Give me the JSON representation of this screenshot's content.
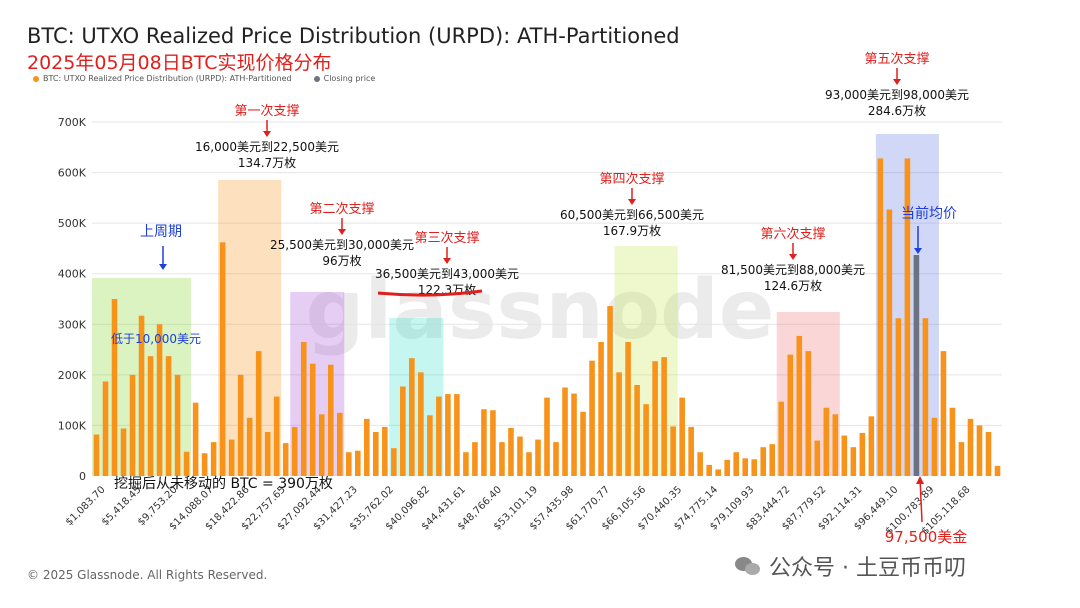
{
  "title": "BTC: UTXO Realized Price Distribution (URPD): ATH-Partitioned",
  "subtitle": "2025年05月08日BTC实现价格分布",
  "legend": {
    "series1": "BTC: UTXO Realized Price Distribution (URPD): ATH-Partitioned",
    "series2": "Closing price"
  },
  "colors": {
    "bar": "#f7931a",
    "bar_alt": "#f5a14a",
    "closing": "#6b7280",
    "grid": "#e5e5e5",
    "annotation_red": "#e0201c",
    "annotation_blue": "#1e3fd8"
  },
  "watermark": "glassnode",
  "copyright": "© 2025 Glassnode. All Rights Reserved.",
  "wechat_label": "公众号 · 土豆币币叨",
  "chart_data": {
    "type": "bar",
    "title": "BTC: UTXO Realized Price Distribution (URPD): ATH-Partitioned",
    "ylim": [
      0,
      700000
    ],
    "yticks": [
      0,
      100000,
      200000,
      300000,
      400000,
      500000,
      600000,
      700000
    ],
    "ytick_labels": [
      "0",
      "100K",
      "200K",
      "300K",
      "400K",
      "500K",
      "600K",
      "700K"
    ],
    "xtick_labels": [
      "$1,083.70",
      "$5,418.45",
      "$9,753.20",
      "$14,088.07",
      "$18,422.86",
      "$22,757.65",
      "$27,092.44",
      "$31,427.23",
      "$35,762.02",
      "$40,096.82",
      "$44,431.61",
      "$48,766.40",
      "$53,101.19",
      "$57,435.98",
      "$61,770.77",
      "$66,105.56",
      "$70,440.35",
      "$74,775.14",
      "$79,109.93",
      "$83,444.72",
      "$87,779.52",
      "$92,114.31",
      "$96,449.10",
      "$100,783.89",
      "$105,118.68"
    ],
    "values": [
      82000,
      187000,
      350000,
      94000,
      200000,
      317000,
      237000,
      300000,
      237000,
      200000,
      48000,
      145000,
      45000,
      67000,
      462000,
      72000,
      200000,
      115000,
      247000,
      87000,
      157000,
      65000,
      97000,
      265000,
      222000,
      122000,
      220000,
      125000,
      47000,
      50000,
      113000,
      87000,
      97000,
      55000,
      177000,
      233000,
      205000,
      120000,
      157000,
      162000,
      162000,
      47000,
      67000,
      132000,
      130000,
      67000,
      95000,
      78000,
      47000,
      72000,
      155000,
      67000,
      175000,
      163000,
      127000,
      228000,
      265000,
      336000,
      205000,
      265000,
      180000,
      142000,
      227000,
      235000,
      98000,
      155000,
      97000,
      47000,
      22000,
      13000,
      32000,
      47000,
      35000,
      33000,
      57000,
      63000,
      147000,
      240000,
      277000,
      247000,
      70000,
      135000,
      122000,
      80000,
      57000,
      85000,
      118000,
      628000,
      527000,
      312000,
      628000,
      437000,
      312000,
      115000,
      247000,
      135000,
      67000,
      113000,
      100000,
      87000,
      20000
    ],
    "closing_index": 91,
    "closing_value": 437000
  },
  "annotations": {
    "support1": {
      "label": "第一次支撑",
      "range": "16,000美元到22,500美元",
      "amount": "134.7万枚"
    },
    "support2": {
      "label": "第二次支撑",
      "range": "25,500美元到30,000美元",
      "amount": "96万枚"
    },
    "support3": {
      "label": "第三次支撑",
      "range": "36,500美元到43,000美元",
      "amount": "122.3万枚"
    },
    "support4": {
      "label": "第四次支撑",
      "range": "60,500美元到66,500美元",
      "amount": "167.9万枚"
    },
    "support5": {
      "label": "第五次支撑",
      "range": "93,000美元到98,000美元",
      "amount": "284.6万枚"
    },
    "support6": {
      "label": "第六次支撑",
      "range": "81,500美元到88,000美元",
      "amount": "124.6万枚"
    },
    "last_week": "上周期",
    "below_10000": "低于10,000美元",
    "current_avg": "当前均价",
    "mined_never_moved": "挖掘后从未移动的 BTC = 390万枚",
    "price_97500": "97,500美金"
  }
}
